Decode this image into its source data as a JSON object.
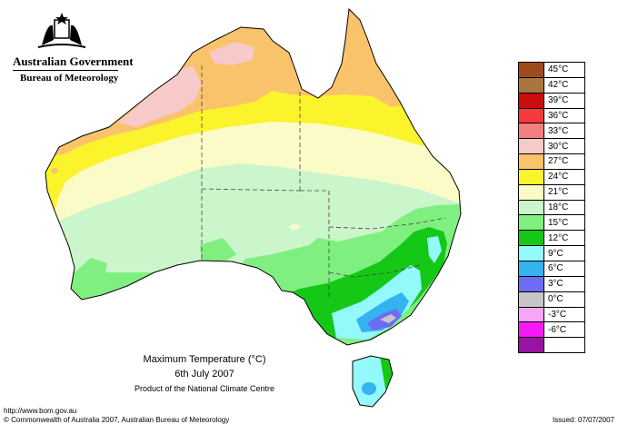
{
  "header": {
    "government": "Australian Government",
    "bureau": "Bureau of Meteorology",
    "crest": "commonwealth-coat-of-arms-icon"
  },
  "legend": {
    "items": [
      {
        "label": "45°C",
        "color": "#9e4a1c"
      },
      {
        "label": "42°C",
        "color": "#a97640"
      },
      {
        "label": "39°C",
        "color": "#c90e0e"
      },
      {
        "label": "36°C",
        "color": "#f63a3a"
      },
      {
        "label": "33°C",
        "color": "#f47f7f"
      },
      {
        "label": "30°C",
        "color": "#f7c9c9"
      },
      {
        "label": "27°C",
        "color": "#f9c36b"
      },
      {
        "label": "24°C",
        "color": "#fbf32c"
      },
      {
        "label": "21°C",
        "color": "#fbfbc8"
      },
      {
        "label": "18°C",
        "color": "#cbf5cb"
      },
      {
        "label": "15°C",
        "color": "#7ff07f"
      },
      {
        "label": "12°C",
        "color": "#15c815"
      },
      {
        "label": "9°C",
        "color": "#93f9fb"
      },
      {
        "label": "6°C",
        "color": "#35b2f0"
      },
      {
        "label": "3°C",
        "color": "#6c6cf5"
      },
      {
        "label": "0°C",
        "color": "#c6c6c6"
      },
      {
        "label": "-3°C",
        "color": "#f7a6f7"
      },
      {
        "label": "-6°C",
        "color": "#f719f7"
      },
      {
        "label": "",
        "color": "#9a12a2"
      }
    ]
  },
  "caption": {
    "title": "Maximum Temperature (°C)",
    "date": "6th July 2007",
    "credit": "Product of the National Climate Centre"
  },
  "footer": {
    "url": "http://www.bom.gov.au",
    "copyright": "© Commonwealth of Australia 2007, Australian Bureau of Meteorology",
    "issued": "Issued: 07/07/2007"
  }
}
